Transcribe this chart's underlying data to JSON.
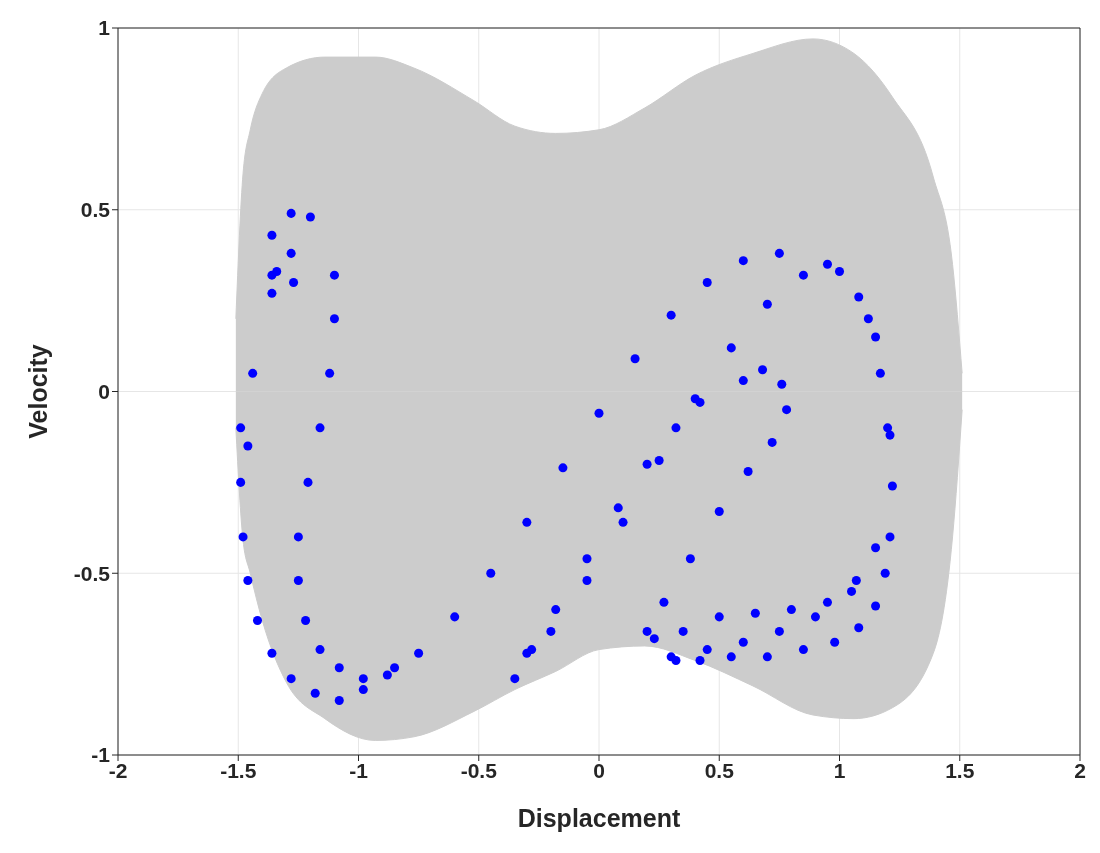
{
  "chart_data": {
    "type": "scatter",
    "xlabel": "Displacement",
    "ylabel": "Velocity",
    "xlim": [
      -2,
      2
    ],
    "ylim": [
      -1,
      1
    ],
    "xticks": [
      -2,
      -1.5,
      -1,
      -0.5,
      0,
      0.5,
      1,
      1.5,
      2
    ],
    "yticks": [
      -1,
      -0.5,
      0,
      0.5,
      1
    ],
    "grid": true,
    "marker": "circle",
    "series": [
      {
        "type": "area",
        "marker": "none",
        "color": "#cccccc",
        "x": [
          -1.51,
          -1.48,
          -1.45,
          -1.4,
          -1.3,
          -1.14,
          -0.93,
          -0.77,
          -0.52,
          -0.35,
          -0.18,
          0,
          0.19,
          0.4,
          0.64,
          0.89,
          1.06,
          1.22,
          1.39,
          1.47,
          1.51
        ],
        "values": [
          0.2,
          0.6,
          0.72,
          0.82,
          0.89,
          0.92,
          0.92,
          0.89,
          0.8,
          0.73,
          0.71,
          0.72,
          0.78,
          0.87,
          0.93,
          0.97,
          0.93,
          0.81,
          0.59,
          0.35,
          0.05
        ]
      },
      {
        "type": "area",
        "marker": "none",
        "color": "#cccccc",
        "x": [
          -1.51,
          -1.48,
          -1.45,
          -1.4,
          -1.3,
          -1.14,
          -0.93,
          -0.77,
          -0.52,
          -0.35,
          -0.18,
          0,
          0.19,
          0.4,
          0.64,
          0.89,
          1.06,
          1.22,
          1.39,
          1.47,
          1.51
        ],
        "values": [
          -0.1,
          -0.41,
          -0.5,
          -0.63,
          -0.8,
          -0.9,
          -0.96,
          -0.95,
          -0.88,
          -0.82,
          -0.77,
          -0.71,
          -0.7,
          -0.74,
          -0.81,
          -0.89,
          -0.9,
          -0.87,
          -0.72,
          -0.4,
          -0.05
        ]
      },
      {
        "color": "#0000ff",
        "x": [
          -1.28,
          -1.36,
          -1.49,
          -1.49,
          -1.48,
          -1.46,
          -1.42,
          -1.36,
          -1.28,
          -1.18,
          -1.08,
          -0.98,
          -0.88,
          -0.75,
          -0.6,
          -0.45,
          -0.3,
          -0.15,
          0,
          0.15,
          0.3,
          0.45,
          0.6,
          0.75,
          1.0,
          1.08,
          1.15,
          1.21,
          1.22,
          1.21,
          1.19,
          1.15,
          1.08,
          0.98,
          0.85,
          0.7,
          0.55,
          0.42,
          0.32,
          -1.2,
          -1.1,
          -1.1,
          -1.12,
          -1.16,
          -1.21,
          -1.25,
          -1.25,
          -1.22,
          -1.16,
          -1.08,
          -0.98,
          -0.85,
          -1.28,
          -1.34,
          -1.36,
          -1.27,
          -1.36,
          -1.44,
          -1.46,
          -0.35,
          -0.28,
          -0.18,
          -0.05,
          0.08,
          0.2,
          0.32,
          0.42,
          0.6,
          0.68,
          0.76,
          0.78,
          0.72,
          0.62,
          0.5,
          0.38,
          0.27,
          0.2,
          0.23,
          0.35,
          0.5,
          0.65,
          0.8,
          0.95,
          1.07,
          1.15,
          -0.3,
          -0.2,
          -0.05,
          0.1,
          0.25,
          0.4,
          0.55,
          0.7,
          0.85,
          0.95,
          1.12,
          1.17,
          1.2,
          0.3,
          0.45,
          0.6,
          0.75,
          0.9,
          1.05
        ],
        "values": [
          0.49,
          0.43,
          -0.1,
          -0.25,
          -0.4,
          -0.52,
          -0.63,
          -0.72,
          -0.79,
          -0.83,
          -0.85,
          -0.82,
          -0.78,
          -0.72,
          -0.62,
          -0.5,
          -0.36,
          -0.21,
          -0.06,
          0.09,
          0.21,
          0.3,
          0.36,
          0.38,
          0.33,
          0.26,
          0.15,
          -0.12,
          -0.26,
          -0.4,
          -0.5,
          -0.59,
          -0.65,
          -0.69,
          -0.71,
          -0.73,
          -0.73,
          -0.74,
          -0.74,
          0.48,
          0.32,
          0.2,
          0.05,
          -0.1,
          -0.25,
          -0.4,
          -0.52,
          -0.63,
          -0.71,
          -0.76,
          -0.79,
          -0.76,
          0.38,
          0.33,
          0.27,
          0.3,
          0.32,
          0.05,
          -0.15,
          -0.79,
          -0.71,
          -0.6,
          -0.46,
          -0.32,
          -0.2,
          -0.1,
          -0.03,
          0.03,
          0.06,
          0.02,
          -0.05,
          -0.14,
          -0.22,
          -0.33,
          -0.46,
          -0.58,
          -0.66,
          -0.68,
          -0.66,
          -0.62,
          -0.61,
          -0.6,
          -0.58,
          -0.52,
          -0.43,
          -0.72,
          -0.66,
          -0.52,
          -0.36,
          -0.19,
          -0.02,
          0.12,
          0.24,
          0.32,
          0.35,
          0.2,
          0.05,
          -0.1,
          -0.73,
          -0.71,
          -0.69,
          -0.66,
          -0.62,
          -0.55
        ]
      }
    ]
  }
}
